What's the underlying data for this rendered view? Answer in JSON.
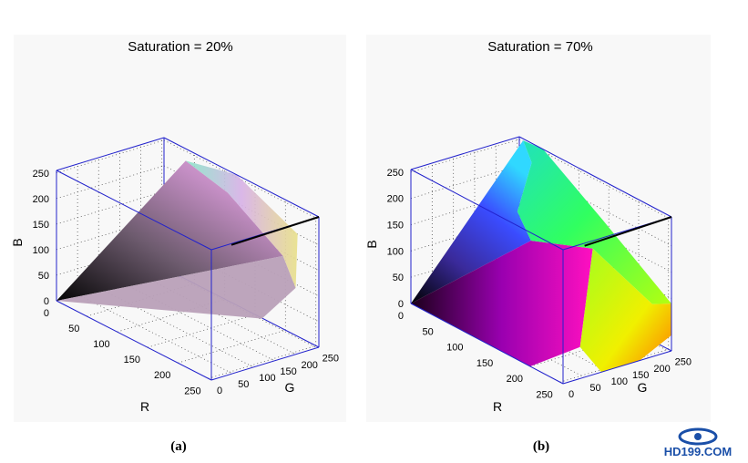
{
  "chart_data": [
    {
      "type": "3d-surface",
      "title": "Saturation = 20%",
      "caption": "(a)",
      "xlabel": "R",
      "ylabel": "G",
      "zlabel": "B",
      "xlim": [
        0,
        255
      ],
      "ylim": [
        0,
        255
      ],
      "zlim": [
        0,
        255
      ],
      "x_ticks": [
        "0",
        "50",
        "100",
        "150",
        "200",
        "250"
      ],
      "y_ticks": [
        "0",
        "50",
        "100",
        "150",
        "200",
        "250"
      ],
      "z_ticks": [
        "0",
        "50",
        "100",
        "150",
        "200",
        "250"
      ],
      "saturation": 0.2,
      "grid": true,
      "diagonal": [
        [
          0,
          0,
          0
        ],
        [
          255,
          255,
          255
        ]
      ]
    },
    {
      "type": "3d-surface",
      "title": "Saturation = 70%",
      "caption": "(b)",
      "xlabel": "R",
      "ylabel": "G",
      "zlabel": "B",
      "xlim": [
        0,
        255
      ],
      "ylim": [
        0,
        255
      ],
      "zlim": [
        0,
        255
      ],
      "x_ticks": [
        "0",
        "50",
        "100",
        "150",
        "200",
        "250"
      ],
      "y_ticks": [
        "0",
        "50",
        "100",
        "150",
        "200",
        "250"
      ],
      "z_ticks": [
        "0",
        "50",
        "100",
        "150",
        "200",
        "250"
      ],
      "saturation": 0.7,
      "grid": true,
      "diagonal": [
        [
          0,
          0,
          0
        ],
        [
          255,
          255,
          255
        ]
      ]
    }
  ],
  "logo": {
    "text": "HD199.COM",
    "color": "#1a4fa8"
  }
}
